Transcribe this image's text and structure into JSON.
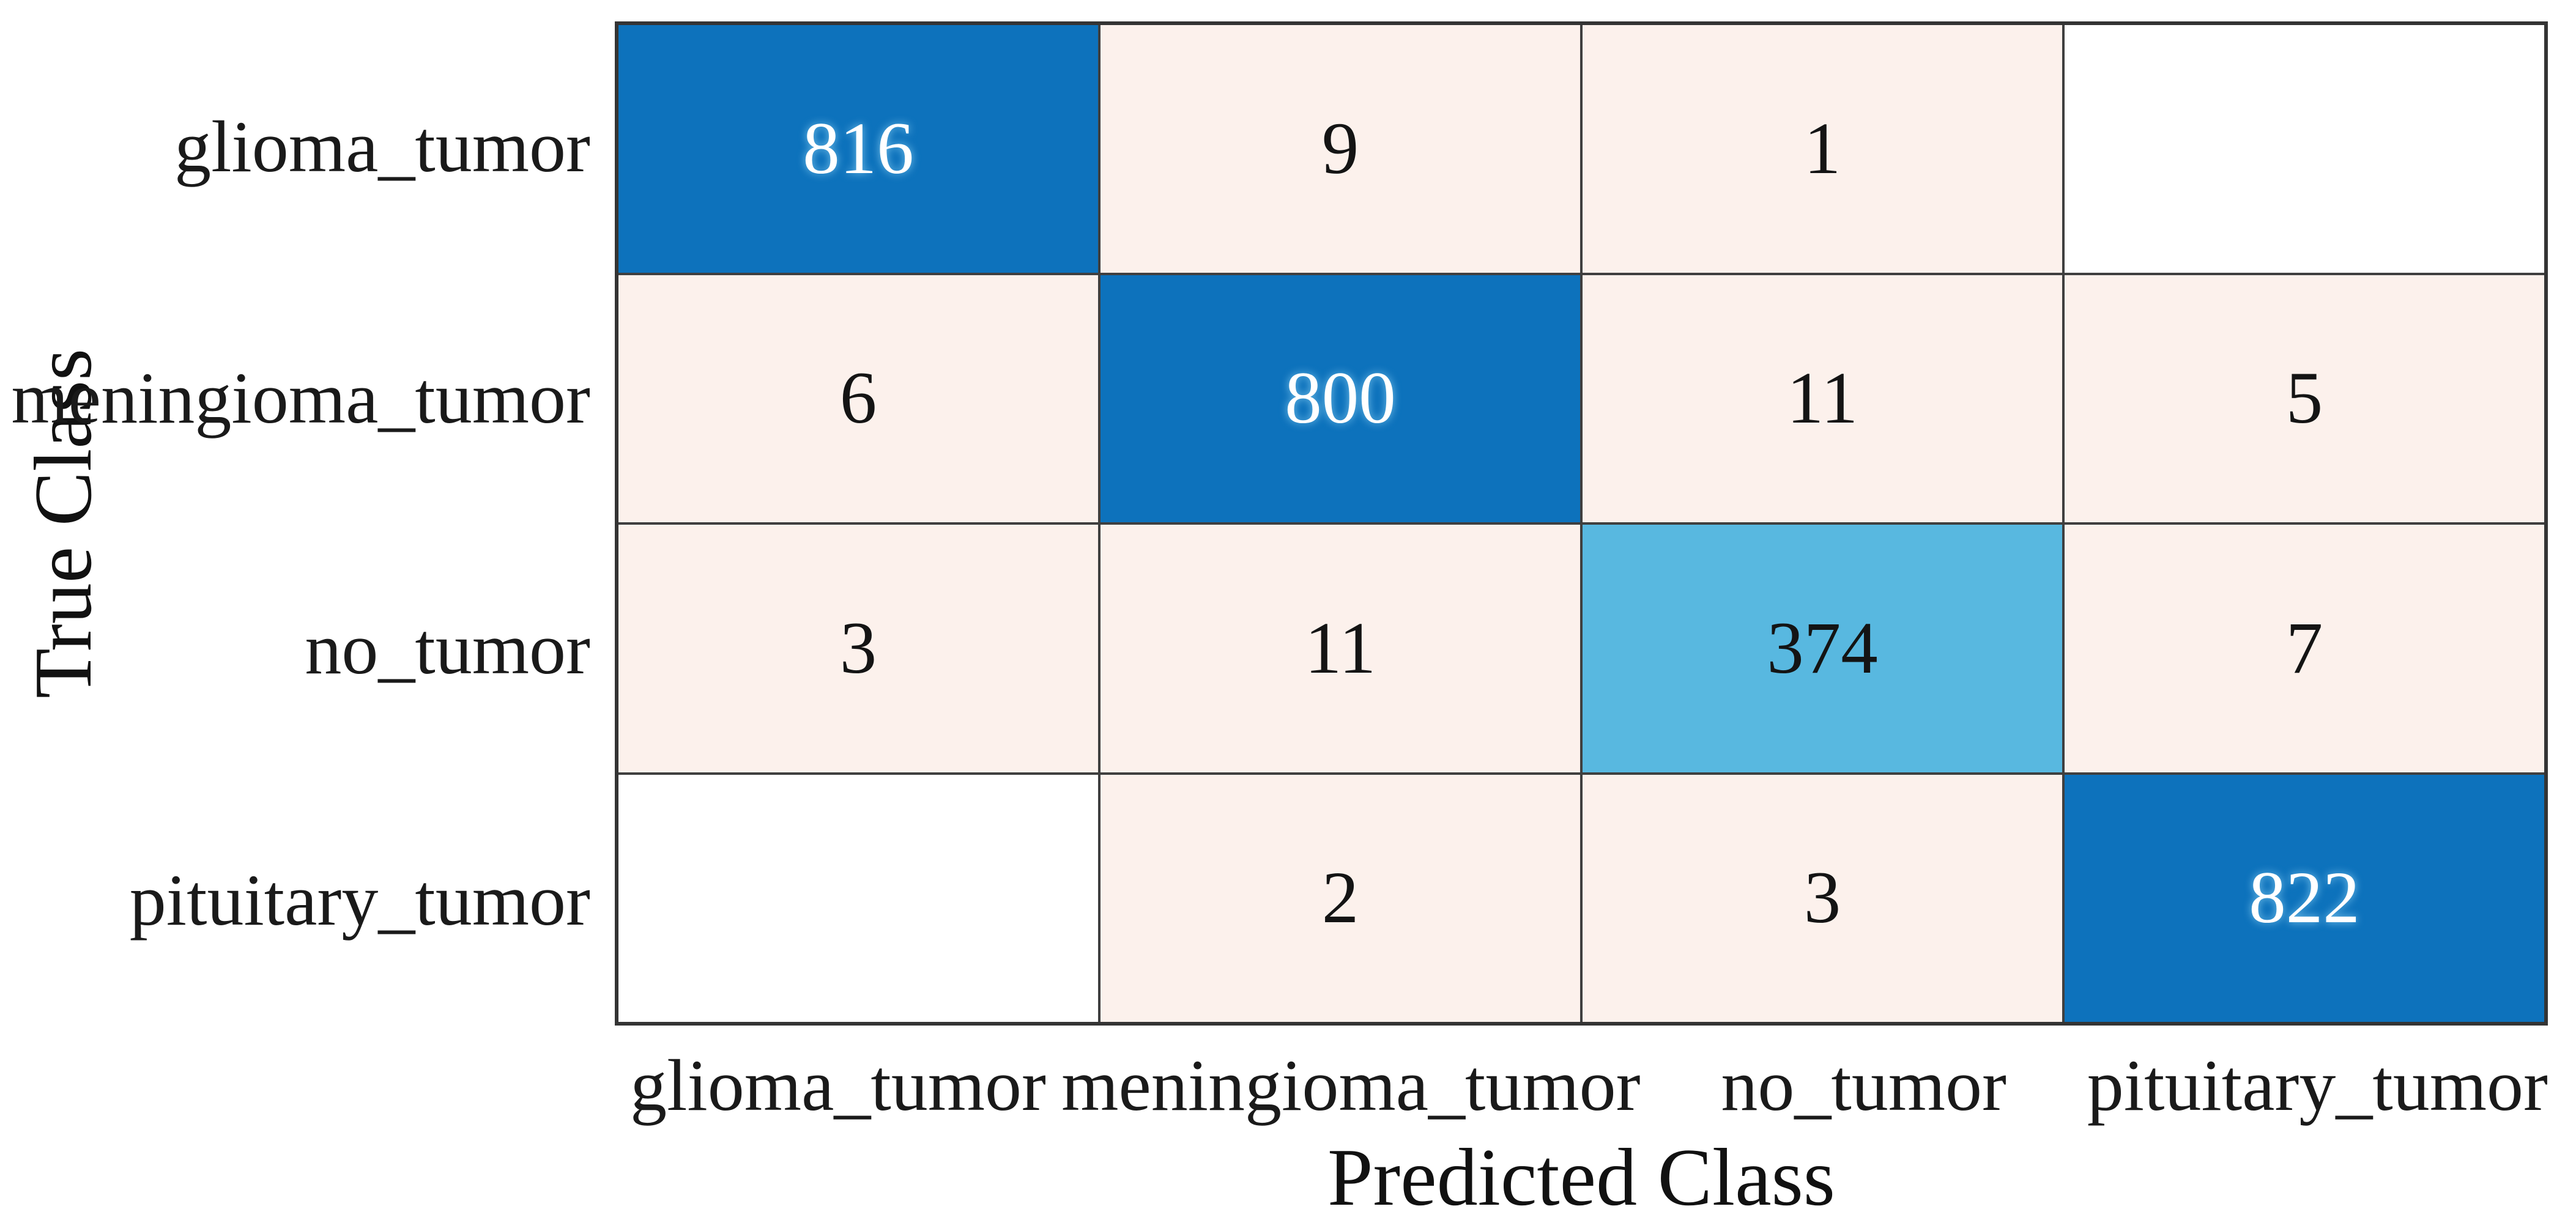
{
  "chart_data": {
    "type": "heatmap",
    "subtype": "confusion-matrix",
    "xlabel": "Predicted Class",
    "ylabel": "True Class",
    "categories": [
      "glioma_tumor",
      "meningioma_tumor",
      "no_tumor",
      "pituitary_tumor"
    ],
    "row_labels": [
      "glioma_tumor",
      "meningioma_tumor",
      "no_tumor",
      "pituitary_tumor"
    ],
    "col_labels": [
      "glioma_tumor",
      "meningioma_tumor",
      "no_tumor",
      "pituitary_tumor"
    ],
    "matrix": [
      [
        816,
        9,
        1,
        null
      ],
      [
        6,
        800,
        11,
        5
      ],
      [
        3,
        11,
        374,
        7
      ],
      [
        null,
        2,
        3,
        822
      ]
    ],
    "cell_styles": [
      [
        "diag",
        "off",
        "off",
        "empty"
      ],
      [
        "off",
        "diag",
        "off",
        "off"
      ],
      [
        "off",
        "off",
        "diag_light",
        "off"
      ],
      [
        "empty",
        "off",
        "off",
        "diag"
      ]
    ],
    "palette": {
      "diag": "#0d72bc",
      "diag_light": "#58b8e0",
      "off": "#fcf1ec",
      "empty": "#ffffff",
      "grid_line": "#3f3f3f",
      "outer_border": "#343434",
      "text_on_dark": "#ffffff",
      "text_on_light": "#141414"
    },
    "legend": "none",
    "grid": true
  }
}
